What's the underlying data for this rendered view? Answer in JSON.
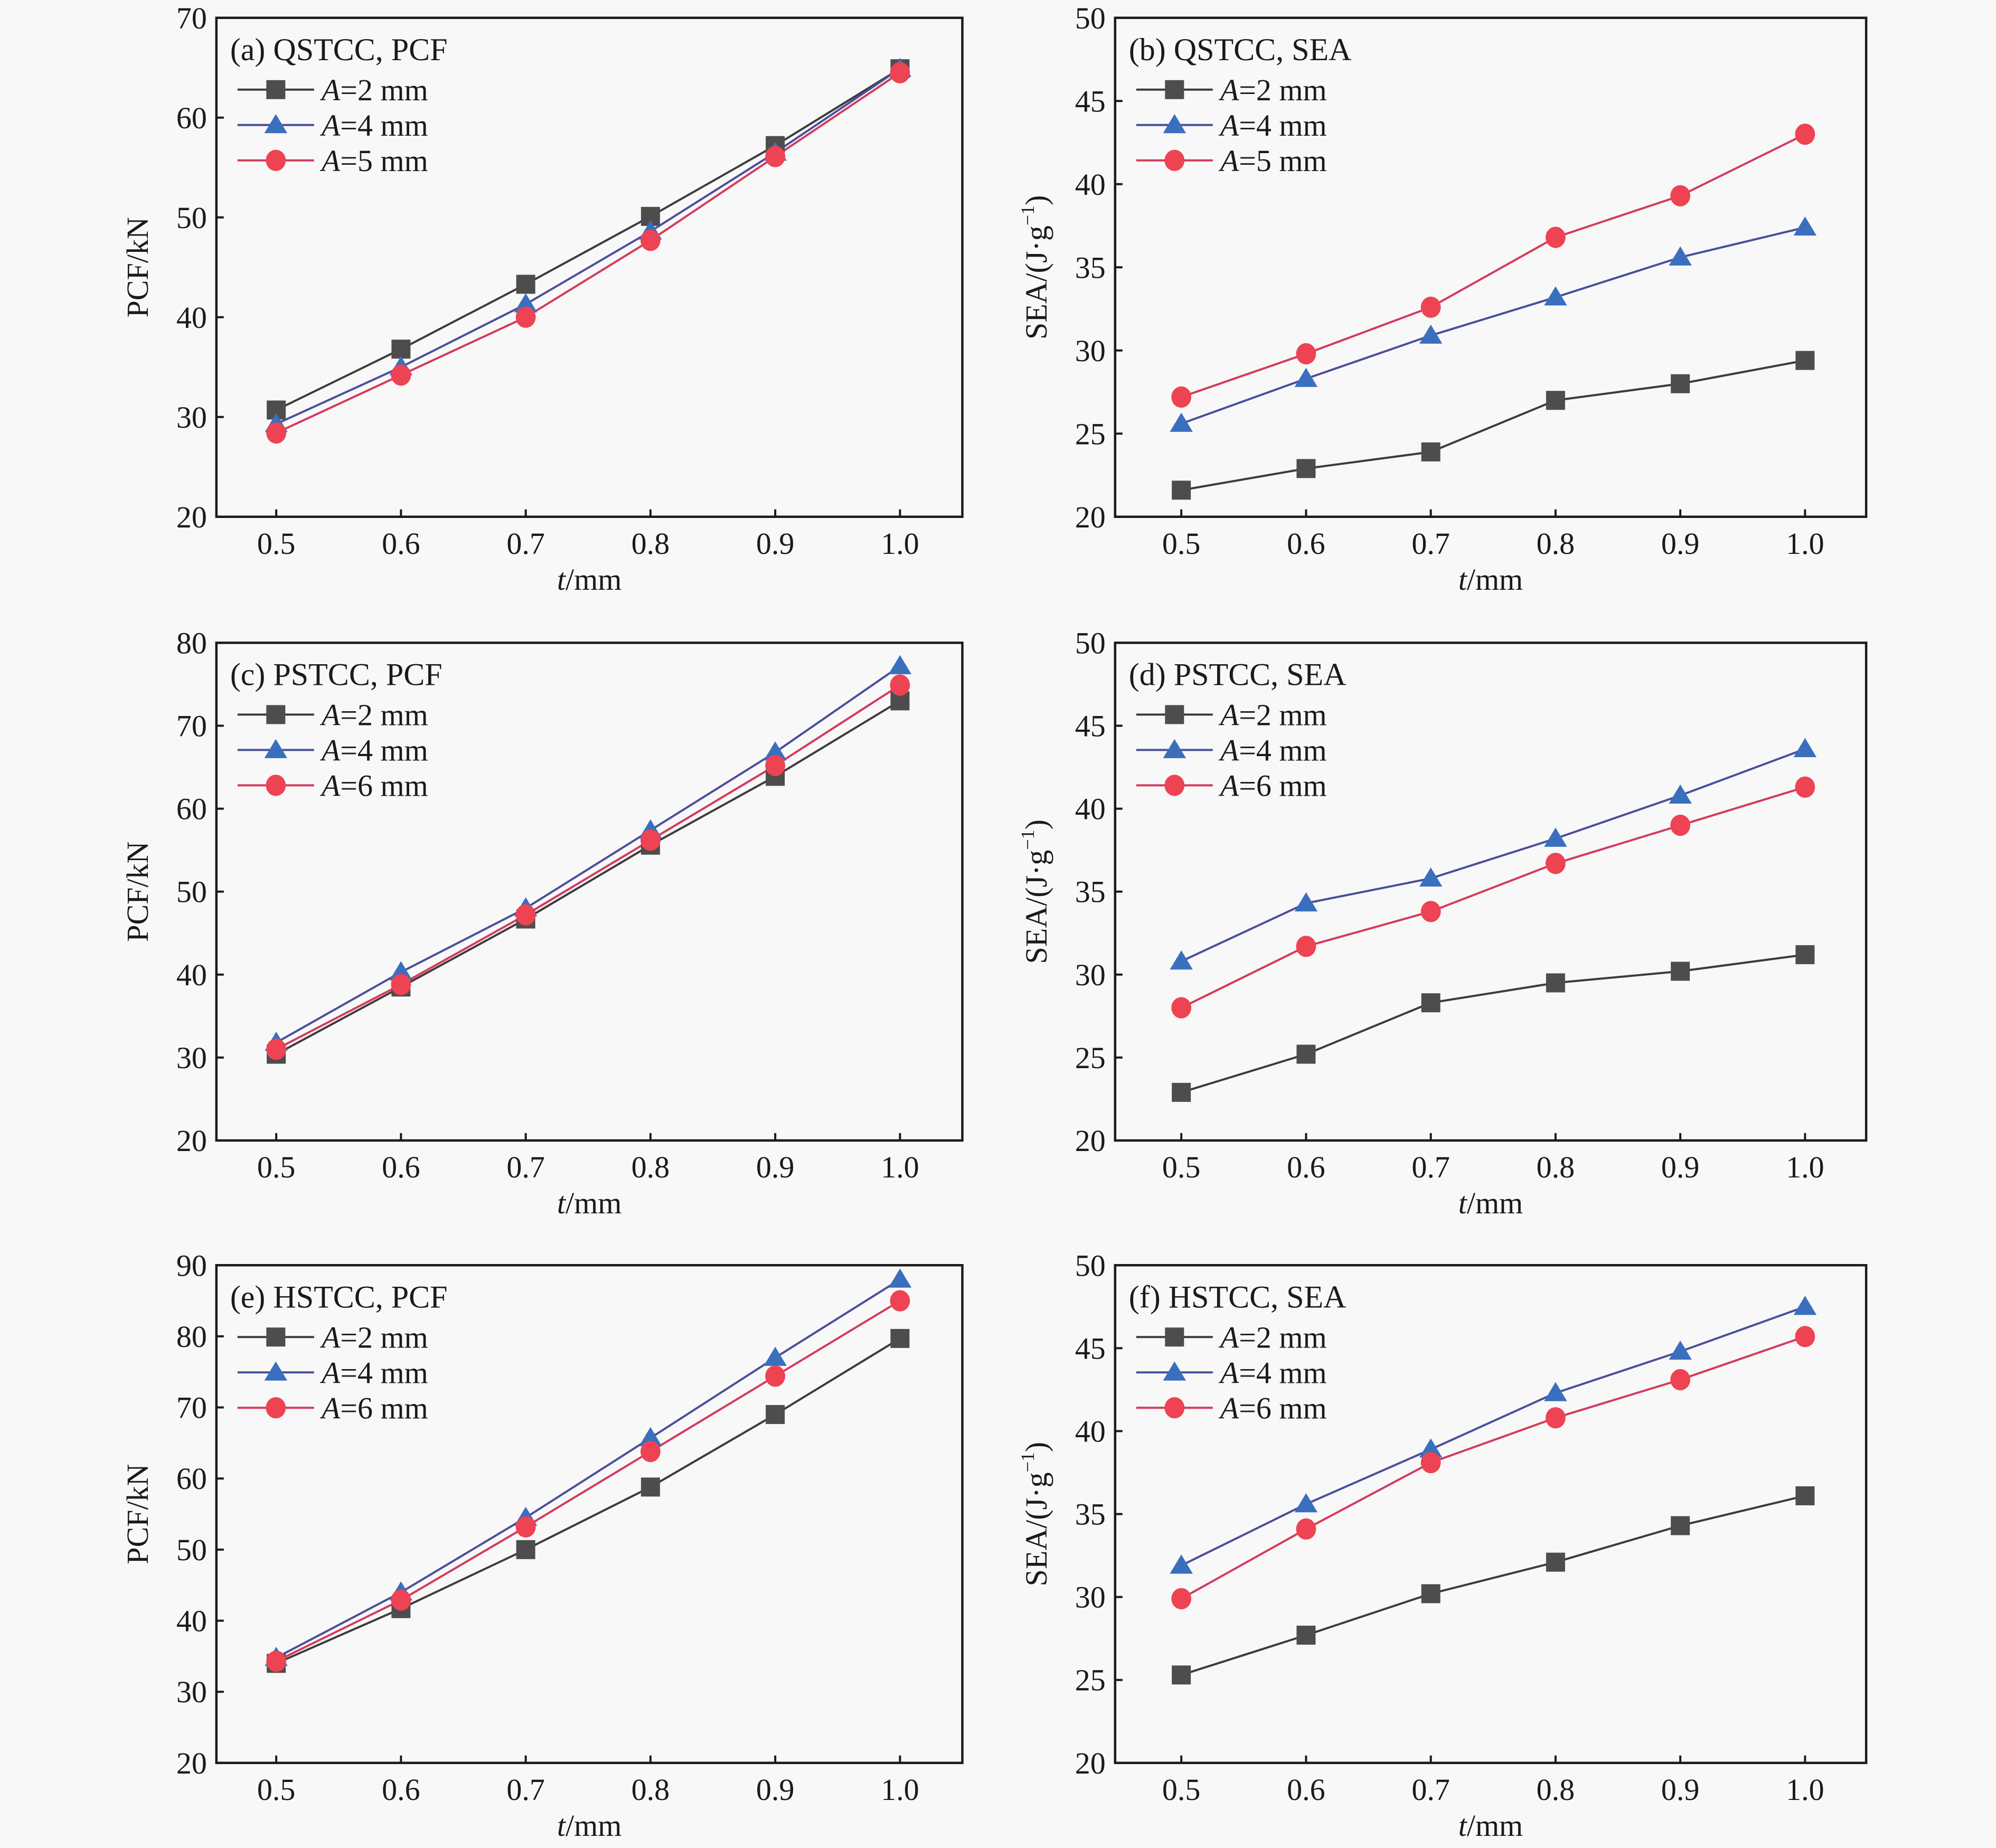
{
  "chart_data": [
    {
      "type": "line",
      "panel": "a",
      "title": "(a) QSTCC, PCF",
      "xlabel_italic": "t",
      "xlabel_rest": "/mm",
      "ylabel": "PCF/kN",
      "x": [
        0.5,
        0.6,
        0.7,
        0.8,
        0.9,
        1.0
      ],
      "xticks": [
        "0.5",
        "0.6",
        "0.7",
        "0.8",
        "0.9",
        "1.0"
      ],
      "ylim": [
        20,
        70
      ],
      "yticks": [
        20,
        30,
        40,
        50,
        60,
        70
      ],
      "legend_position": "top-left",
      "series": [
        {
          "name_italic": "A",
          "name_rest": "=2 mm",
          "marker": "square",
          "values": [
            30.7,
            36.8,
            43.3,
            50.1,
            57.2,
            64.9
          ]
        },
        {
          "name_italic": "A",
          "name_rest": "=4 mm",
          "marker": "triangle",
          "values": [
            29.3,
            35.0,
            41.3,
            48.6,
            56.5,
            64.9
          ]
        },
        {
          "name_italic": "A",
          "name_rest": "=5 mm",
          "marker": "circle",
          "values": [
            28.4,
            34.2,
            40.0,
            47.7,
            56.1,
            64.5
          ]
        }
      ]
    },
    {
      "type": "line",
      "panel": "b",
      "title": "(b) QSTCC, SEA",
      "xlabel_italic": "t",
      "xlabel_rest": "/mm",
      "ylabel": "SEA/(J·g",
      "ylabel_sup": "−1",
      "ylabel_end": ")",
      "x": [
        0.5,
        0.6,
        0.7,
        0.8,
        0.9,
        1.0
      ],
      "xticks": [
        "0.5",
        "0.6",
        "0.7",
        "0.8",
        "0.9",
        "1.0"
      ],
      "ylim": [
        20,
        50
      ],
      "yticks": [
        20,
        25,
        30,
        35,
        40,
        45,
        50
      ],
      "legend_position": "top-left",
      "series": [
        {
          "name_italic": "A",
          "name_rest": "=2 mm",
          "marker": "square",
          "values": [
            21.6,
            22.9,
            23.9,
            27.0,
            28.0,
            29.4
          ]
        },
        {
          "name_italic": "A",
          "name_rest": "=4 mm",
          "marker": "triangle",
          "values": [
            25.6,
            28.3,
            30.9,
            33.2,
            35.6,
            37.4
          ]
        },
        {
          "name_italic": "A",
          "name_rest": "=5 mm",
          "marker": "circle",
          "values": [
            27.2,
            29.8,
            32.6,
            36.8,
            39.3,
            43.0
          ]
        }
      ]
    },
    {
      "type": "line",
      "panel": "c",
      "title": "(c) PSTCC, PCF",
      "xlabel_italic": "t",
      "xlabel_rest": "/mm",
      "ylabel": "PCF/kN",
      "x": [
        0.5,
        0.6,
        0.7,
        0.8,
        0.9,
        1.0
      ],
      "xticks": [
        "0.5",
        "0.6",
        "0.7",
        "0.8",
        "0.9",
        "1.0"
      ],
      "ylim": [
        20,
        80
      ],
      "yticks": [
        20,
        30,
        40,
        50,
        60,
        70,
        80
      ],
      "legend_position": "top-left",
      "series": [
        {
          "name_italic": "A",
          "name_rest": "=2 mm",
          "marker": "square",
          "values": [
            30.4,
            38.5,
            46.7,
            55.6,
            63.9,
            73.0
          ]
        },
        {
          "name_italic": "A",
          "name_rest": "=4 mm",
          "marker": "triangle",
          "values": [
            31.8,
            40.3,
            48.0,
            57.4,
            66.8,
            77.2
          ]
        },
        {
          "name_italic": "A",
          "name_rest": "=6 mm",
          "marker": "circle",
          "values": [
            31.0,
            38.8,
            47.2,
            56.2,
            65.2,
            74.9
          ]
        }
      ]
    },
    {
      "type": "line",
      "panel": "d",
      "title": "(d) PSTCC, SEA",
      "xlabel_italic": "t",
      "xlabel_rest": "/mm",
      "ylabel": "SEA/(J·g",
      "ylabel_sup": "−1",
      "ylabel_end": ")",
      "x": [
        0.5,
        0.6,
        0.7,
        0.8,
        0.9,
        1.0
      ],
      "xticks": [
        "0.5",
        "0.6",
        "0.7",
        "0.8",
        "0.9",
        "1.0"
      ],
      "ylim": [
        20,
        50
      ],
      "yticks": [
        20,
        25,
        30,
        35,
        40,
        45,
        50
      ],
      "legend_position": "top-left",
      "series": [
        {
          "name_italic": "A",
          "name_rest": "=2 mm",
          "marker": "square",
          "values": [
            22.9,
            25.2,
            28.3,
            29.5,
            30.2,
            31.2
          ]
        },
        {
          "name_italic": "A",
          "name_rest": "=4 mm",
          "marker": "triangle",
          "values": [
            30.8,
            34.3,
            35.8,
            38.2,
            40.8,
            43.6
          ]
        },
        {
          "name_italic": "A",
          "name_rest": "=6 mm",
          "marker": "circle",
          "values": [
            28.0,
            31.7,
            33.8,
            36.7,
            39.0,
            41.3
          ]
        }
      ]
    },
    {
      "type": "line",
      "panel": "e",
      "title": "(e) HSTCC, PCF",
      "xlabel_italic": "t",
      "xlabel_rest": "/mm",
      "ylabel": "PCF/kN",
      "x": [
        0.5,
        0.6,
        0.7,
        0.8,
        0.9,
        1.0
      ],
      "xticks": [
        "0.5",
        "0.6",
        "0.7",
        "0.8",
        "0.9",
        "1.0"
      ],
      "ylim": [
        20,
        90
      ],
      "yticks": [
        20,
        30,
        40,
        50,
        60,
        70,
        80,
        90
      ],
      "legend_position": "top-left",
      "series": [
        {
          "name_italic": "A",
          "name_rest": "=2 mm",
          "marker": "square",
          "values": [
            34.0,
            41.7,
            50.0,
            58.8,
            69.0,
            79.7
          ]
        },
        {
          "name_italic": "A",
          "name_rest": "=4 mm",
          "marker": "triangle",
          "values": [
            34.8,
            44.0,
            54.5,
            65.7,
            77.0,
            88.0
          ]
        },
        {
          "name_italic": "A",
          "name_rest": "=6 mm",
          "marker": "circle",
          "values": [
            34.3,
            42.9,
            53.2,
            63.8,
            74.4,
            85.0
          ]
        }
      ]
    },
    {
      "type": "line",
      "panel": "f",
      "title": "(f) HSTCC, SEA",
      "xlabel_italic": "t",
      "xlabel_rest": "/mm",
      "ylabel": "SEA/(J·g",
      "ylabel_sup": "−1",
      "ylabel_end": ")",
      "x": [
        0.5,
        0.6,
        0.7,
        0.8,
        0.9,
        1.0
      ],
      "xticks": [
        "0.5",
        "0.6",
        "0.7",
        "0.8",
        "0.9",
        "1.0"
      ],
      "ylim": [
        20,
        50
      ],
      "yticks": [
        20,
        25,
        30,
        35,
        40,
        45,
        50
      ],
      "legend_position": "top-left",
      "series": [
        {
          "name_italic": "A",
          "name_rest": "=2 mm",
          "marker": "square",
          "values": [
            25.3,
            27.7,
            30.2,
            32.1,
            34.3,
            36.1
          ]
        },
        {
          "name_italic": "A",
          "name_rest": "=4 mm",
          "marker": "triangle",
          "values": [
            31.9,
            35.6,
            38.9,
            42.3,
            44.8,
            47.5
          ]
        },
        {
          "name_italic": "A",
          "name_rest": "=6 mm",
          "marker": "circle",
          "values": [
            29.9,
            34.1,
            38.1,
            40.8,
            43.1,
            45.7
          ]
        }
      ]
    }
  ],
  "colors": {
    "square_fill": "#4d4d4d",
    "square_line": "#3c3c3c",
    "triangle_fill": "#3a6fbe",
    "triangle_line": "#4a4f9a",
    "circle_fill": "#ee4352",
    "circle_line": "#d43a5c",
    "axis": "#1a1a1a"
  }
}
